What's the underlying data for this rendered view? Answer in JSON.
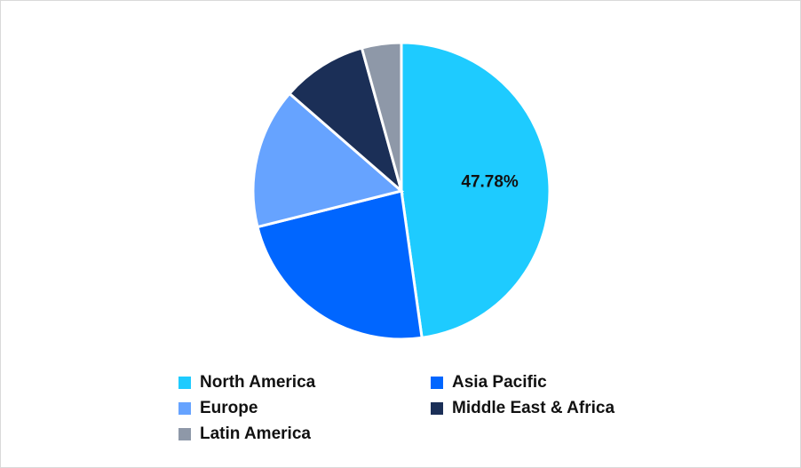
{
  "chart_data": {
    "type": "pie",
    "title": "",
    "start_angle": "top",
    "direction": "clockwise",
    "slices": [
      {
        "label": "North America",
        "value": 47.78,
        "color": "#1ECBFF",
        "data_label": "47.78%"
      },
      {
        "label": "Asia Pacific",
        "value": 23.3,
        "color": "#0066FF",
        "data_label": ""
      },
      {
        "label": "Europe",
        "value": 15.3,
        "color": "#66A3FF",
        "data_label": ""
      },
      {
        "label": "Middle East & Africa",
        "value": 9.3,
        "color": "#1B2F57",
        "data_label": ""
      },
      {
        "label": "Latin America",
        "value": 4.3,
        "color": "#8E98A8",
        "data_label": ""
      }
    ],
    "legend_placement": "bottom"
  }
}
